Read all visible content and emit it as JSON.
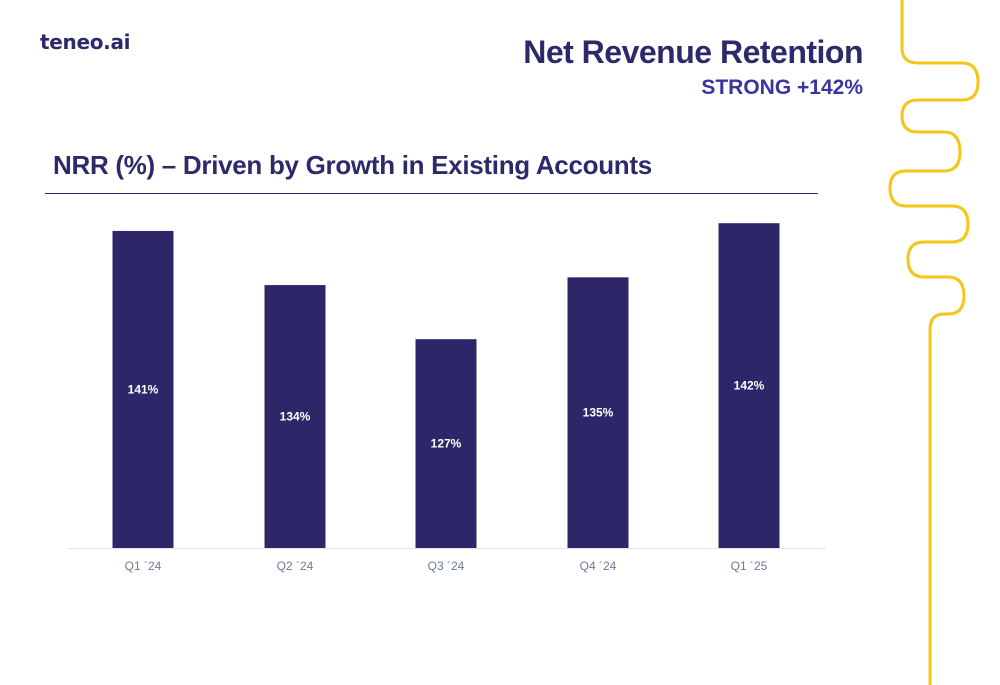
{
  "brand": {
    "logo_text": "teneo.ai"
  },
  "header": {
    "title": "Net Revenue Retention",
    "subtitle": "STRONG +142%"
  },
  "section": {
    "title": "NRR (%) – Driven by Growth in Existing Accounts"
  },
  "colors": {
    "bar": "#2d2769",
    "title": "#2d2a6b",
    "accent": "#3a35a0",
    "decoration": "#f5c518",
    "axis_label": "#6b7a96"
  },
  "chart_data": {
    "type": "bar",
    "categories": [
      "Q1 ´24",
      "Q2 ´24",
      "Q3 ´24",
      "Q4 ´24",
      "Q1 ´25"
    ],
    "values": [
      141,
      134,
      127,
      135,
      142
    ],
    "data_labels": [
      "141%",
      "134%",
      "127%",
      "135%",
      "142%"
    ],
    "title": "NRR (%) – Driven by Growth in Existing Accounts",
    "xlabel": "",
    "ylabel": "",
    "ylim": [
      100,
      145
    ],
    "grid": false,
    "legend": "none"
  }
}
